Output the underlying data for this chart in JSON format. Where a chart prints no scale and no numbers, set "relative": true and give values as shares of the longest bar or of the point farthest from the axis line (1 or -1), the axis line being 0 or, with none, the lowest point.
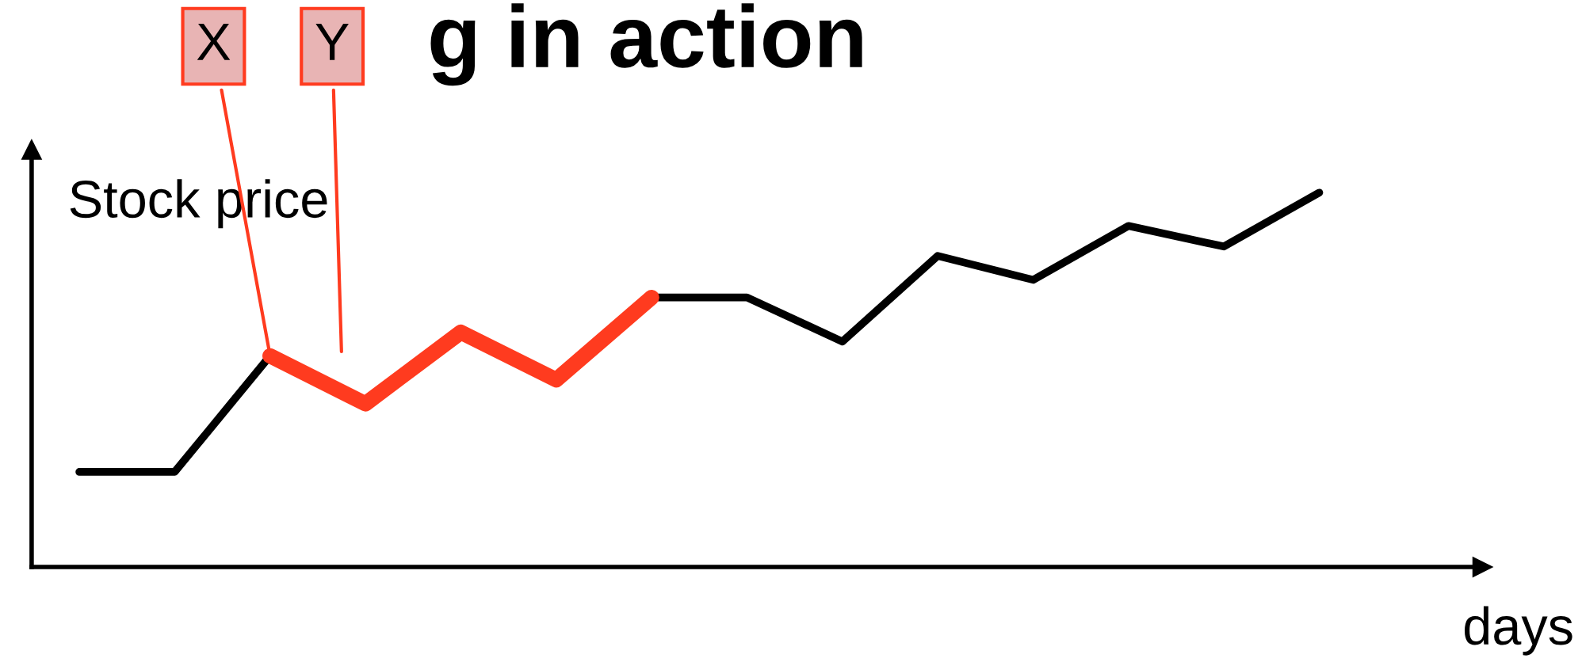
{
  "chart_data": {
    "type": "line",
    "title": "g in action",
    "xlabel": "days",
    "ylabel": "Stock price",
    "relative": true,
    "categories": [
      null,
      null,
      null,
      null,
      null,
      null,
      null,
      null,
      null,
      null,
      null,
      null,
      null,
      null
    ],
    "series": [
      {
        "color": "#000000",
        "values": [
          0.254,
          0.254,
          0.564,
          null,
          null,
          null,
          0.72,
          0.72,
          0.602,
          0.831,
          0.767,
          0.911,
          0.856,
          1
        ]
      },
      {
        "color": "#ff3b1f",
        "values": [
          null,
          null,
          0.564,
          0.436,
          0.627,
          0.5,
          0.72,
          null,
          null,
          null,
          null,
          null,
          null,
          null
        ]
      }
    ],
    "annotations": [
      "X",
      "Y"
    ],
    "grid": false,
    "legend": false,
    "marker": "none",
    "line_style": "solid"
  }
}
